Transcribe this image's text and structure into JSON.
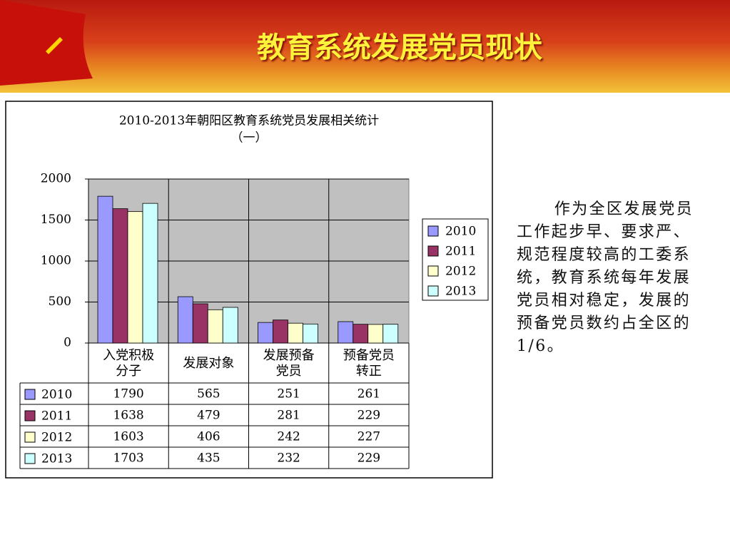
{
  "title": "教育系统发展党员现状",
  "body": "作为全区发展党员工作起步早、要求严、规范程度较高的工委系统，教育系统每年发展党员相对稳定，发展的预备党员数约占全区的1/6。",
  "chart_data": {
    "type": "bar",
    "title": "2010-2013年朝阳区教育系统党员发展相关统计",
    "subtitle": "（一）",
    "categories": [
      "入党积极分子",
      "发展对象",
      "发展预备党员",
      "预备党员转正"
    ],
    "series": [
      {
        "name": "2010",
        "color": "#9999ff",
        "values": [
          1790,
          565,
          251,
          261
        ]
      },
      {
        "name": "2011",
        "color": "#993366",
        "values": [
          1638,
          479,
          281,
          229
        ]
      },
      {
        "name": "2012",
        "color": "#ffffcc",
        "values": [
          1603,
          406,
          242,
          227
        ]
      },
      {
        "name": "2013",
        "color": "#ccffff",
        "values": [
          1703,
          435,
          232,
          229
        ]
      }
    ],
    "ylim": [
      0,
      2000
    ],
    "yticks": [
      0,
      500,
      1000,
      1500,
      2000
    ],
    "grid": true,
    "legend": "right"
  }
}
